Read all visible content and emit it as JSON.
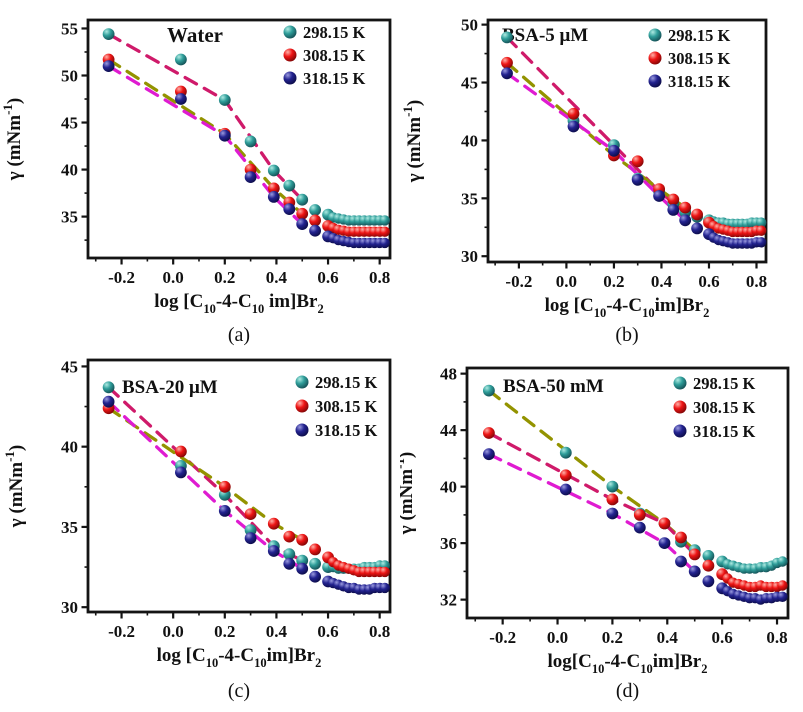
{
  "background": "#ffffff",
  "axis_color": "#141414",
  "palette": {
    "teal": {
      "light": "#aeeae2",
      "base": "#2f9e9a",
      "dark": "#134c52"
    },
    "red": {
      "light": "#ffb0a8",
      "base": "#ee1515",
      "dark": "#7c0505"
    },
    "navy": {
      "light": "#9a9adf",
      "base": "#232390",
      "dark": "#0b0b45"
    }
  },
  "chart_data": [
    {
      "type": "scatter",
      "panel": "a",
      "caption": "(a)",
      "title": "Water",
      "xlabel": "log [C10-4-C10 im]Br2",
      "xlabel_segments": [
        {
          "t": "log [C"
        },
        {
          "t": "10",
          "sub": true
        },
        {
          "t": "-4-C"
        },
        {
          "t": "10",
          "sub": true
        },
        {
          "t": " im]Br"
        },
        {
          "t": "2",
          "sub": true
        }
      ],
      "ylabel": "γ (mNm⁻¹)",
      "ylabel_segments": [
        {
          "t": "γ (mNm"
        },
        {
          "t": "-1",
          "sup": true
        },
        {
          "t": ")"
        }
      ],
      "xlim": [
        -0.33,
        0.84
      ],
      "ylim": [
        30.6,
        55.9
      ],
      "x_ticks": [
        -0.2,
        0.0,
        0.2,
        0.4,
        0.6,
        0.8
      ],
      "x_tick_labels": [
        "-0.2",
        "0.0",
        "0.2",
        "0.4",
        "0.6",
        "0.8"
      ],
      "x_minor_ticks": [
        -0.3,
        -0.1,
        0.1,
        0.3,
        0.5,
        0.7
      ],
      "y_ticks": [
        35,
        40,
        45,
        50,
        55
      ],
      "y_minor_ticks": [
        32.5,
        37.5,
        42.5,
        47.5,
        52.5
      ],
      "legend_position": "top-right",
      "grid": false,
      "x": [
        -0.25,
        0.03,
        0.2,
        0.3,
        0.39,
        0.45,
        0.5,
        0.55,
        0.6,
        0.62,
        0.64,
        0.66,
        0.68,
        0.7,
        0.72,
        0.74,
        0.76,
        0.78,
        0.8,
        0.82
      ],
      "series": [
        {
          "name": "298.15 K",
          "marker_color": "teal",
          "trend_color": "#cf1a6a",
          "y": [
            54.4,
            51.7,
            47.4,
            43.0,
            39.9,
            38.3,
            36.8,
            35.7,
            35.2,
            34.9,
            34.8,
            34.7,
            34.6,
            34.6,
            34.6,
            34.6,
            34.6,
            34.6,
            34.6,
            34.6
          ]
        },
        {
          "name": "308.15 K",
          "marker_color": "red",
          "trend_color": "#939300",
          "y": [
            51.7,
            48.3,
            43.8,
            40.0,
            38.0,
            36.5,
            35.3,
            34.6,
            34.0,
            33.8,
            33.6,
            33.5,
            33.4,
            33.4,
            33.4,
            33.4,
            33.4,
            33.4,
            33.4,
            33.4
          ]
        },
        {
          "name": "318.15 K",
          "marker_color": "navy",
          "trend_color": "#df1bd1",
          "y": [
            51.0,
            47.5,
            43.6,
            39.2,
            37.1,
            35.8,
            34.2,
            33.5,
            32.9,
            32.7,
            32.5,
            32.4,
            32.3,
            32.2,
            32.2,
            32.2,
            32.2,
            32.2,
            32.2,
            32.2
          ]
        }
      ]
    },
    {
      "type": "scatter",
      "panel": "b",
      "caption": "(b)",
      "title": "BSA-5 μM",
      "xlabel": "log [C10-4-C10im]Br2",
      "xlabel_segments": [
        {
          "t": "log [C"
        },
        {
          "t": "10",
          "sub": true
        },
        {
          "t": "-4-C"
        },
        {
          "t": "10",
          "sub": true
        },
        {
          "t": "im]Br"
        },
        {
          "t": "2",
          "sub": true
        }
      ],
      "ylabel": "γ (mNm⁻¹)",
      "ylabel_segments": [
        {
          "t": "γ (mNm"
        },
        {
          "t": "-1",
          "sup": true
        },
        {
          "t": ")"
        }
      ],
      "xlim": [
        -0.33,
        0.84
      ],
      "ylim": [
        29.5,
        50.4
      ],
      "x_ticks": [
        -0.2,
        0.0,
        0.2,
        0.4,
        0.6,
        0.8
      ],
      "x_tick_labels": [
        "-0.2",
        "0.0",
        "0.2",
        "0.4",
        "0.6",
        "0.8"
      ],
      "x_minor_ticks": [
        -0.3,
        -0.1,
        0.1,
        0.3,
        0.5,
        0.7
      ],
      "y_ticks": [
        30,
        35,
        40,
        45,
        50
      ],
      "y_minor_ticks": [
        32.5,
        37.5,
        42.5,
        47.5
      ],
      "legend_position": "top-right",
      "grid": false,
      "x": [
        -0.25,
        0.03,
        0.2,
        0.3,
        0.39,
        0.45,
        0.5,
        0.55,
        0.6,
        0.62,
        0.64,
        0.66,
        0.68,
        0.7,
        0.72,
        0.74,
        0.76,
        0.78,
        0.8,
        0.82
      ],
      "series": [
        {
          "name": "298.15 K",
          "marker_color": "teal",
          "trend_color": "#cf1a6a",
          "y": [
            48.9,
            41.7,
            39.6,
            36.7,
            35.6,
            34.5,
            33.8,
            33.4,
            33.1,
            33.0,
            32.9,
            32.9,
            32.8,
            32.8,
            32.8,
            32.8,
            32.8,
            32.9,
            32.9,
            32.9
          ]
        },
        {
          "name": "308.15 K",
          "marker_color": "red",
          "trend_color": "#939300",
          "y": [
            46.7,
            42.3,
            38.7,
            38.2,
            35.8,
            34.9,
            34.2,
            33.6,
            32.9,
            32.6,
            32.4,
            32.3,
            32.2,
            32.1,
            32.1,
            32.1,
            32.1,
            32.1,
            32.2,
            32.2
          ]
        },
        {
          "name": "318.15 K",
          "marker_color": "navy",
          "trend_color": "#df1bd1",
          "y": [
            45.8,
            41.2,
            39.1,
            36.6,
            35.2,
            34.0,
            33.1,
            32.4,
            31.9,
            31.6,
            31.4,
            31.3,
            31.2,
            31.1,
            31.1,
            31.1,
            31.1,
            31.1,
            31.2,
            31.2
          ]
        }
      ]
    },
    {
      "type": "scatter",
      "panel": "c",
      "caption": "(c)",
      "title": "BSA-20 μM",
      "xlabel": "log [C10-4-C10im]Br2",
      "xlabel_segments": [
        {
          "t": "log [C"
        },
        {
          "t": "10",
          "sub": true
        },
        {
          "t": "-4-C"
        },
        {
          "t": "10",
          "sub": true
        },
        {
          "t": "im]Br"
        },
        {
          "t": "2",
          "sub": true
        }
      ],
      "ylabel": "γ (mNm⁻¹)",
      "ylabel_segments": [
        {
          "t": "γ (mNm"
        },
        {
          "t": "-1",
          "sup": true
        },
        {
          "t": ")"
        }
      ],
      "xlim": [
        -0.33,
        0.84
      ],
      "ylim": [
        29.7,
        45.4
      ],
      "x_ticks": [
        -0.2,
        0.0,
        0.2,
        0.4,
        0.6,
        0.8
      ],
      "x_tick_labels": [
        "-0.2",
        "0.0",
        "0.2",
        "0.4",
        "0.6",
        "0.8"
      ],
      "x_minor_ticks": [
        -0.3,
        -0.1,
        0.1,
        0.3,
        0.5,
        0.7
      ],
      "y_ticks": [
        30,
        35,
        40,
        45
      ],
      "y_minor_ticks": [
        32.5,
        37.5,
        42.5
      ],
      "legend_position": "top-right",
      "grid": false,
      "x": [
        -0.25,
        0.03,
        0.2,
        0.3,
        0.39,
        0.45,
        0.5,
        0.55,
        0.6,
        0.62,
        0.64,
        0.66,
        0.68,
        0.7,
        0.72,
        0.74,
        0.76,
        0.78,
        0.8,
        0.82
      ],
      "series": [
        {
          "name": "298.15 K",
          "marker_color": "teal",
          "trend_color": "#cf1a6a",
          "y": [
            43.7,
            38.8,
            37.0,
            34.8,
            33.8,
            33.3,
            32.9,
            32.7,
            32.5,
            32.5,
            32.4,
            32.4,
            32.4,
            32.4,
            32.4,
            32.5,
            32.5,
            32.5,
            32.6,
            32.6
          ]
        },
        {
          "name": "308.15 K",
          "marker_color": "red",
          "trend_color": "#939300",
          "y": [
            42.4,
            39.7,
            37.5,
            35.8,
            35.2,
            34.4,
            34.2,
            33.6,
            33.1,
            32.8,
            32.6,
            32.5,
            32.4,
            32.3,
            32.2,
            32.2,
            32.2,
            32.2,
            32.2,
            32.2
          ]
        },
        {
          "name": "318.15 K",
          "marker_color": "navy",
          "trend_color": "#df1bd1",
          "y": [
            42.8,
            38.4,
            36.0,
            34.3,
            33.5,
            32.7,
            32.4,
            31.9,
            31.6,
            31.5,
            31.4,
            31.3,
            31.2,
            31.2,
            31.1,
            31.1,
            31.1,
            31.2,
            31.2,
            31.2
          ]
        }
      ]
    },
    {
      "type": "scatter",
      "panel": "d",
      "caption": "(d)",
      "title": "BSA-50 mM",
      "xlabel": "log[C10-4-C10im]Br2",
      "xlabel_segments": [
        {
          "t": "log[C"
        },
        {
          "t": "10",
          "sub": true
        },
        {
          "t": "-4-C"
        },
        {
          "t": "10",
          "sub": true
        },
        {
          "t": "im]Br"
        },
        {
          "t": "2",
          "sub": true
        }
      ],
      "ylabel": "γ (mNm⁻¹)",
      "ylabel_segments": [
        {
          "t": "γ (mNm"
        },
        {
          "t": "-1",
          "sup": true
        },
        {
          "t": ")"
        }
      ],
      "xlim": [
        -0.33,
        0.84
      ],
      "ylim": [
        30.7,
        48.4
      ],
      "x_ticks": [
        -0.2,
        0.0,
        0.2,
        0.4,
        0.6,
        0.8
      ],
      "x_tick_labels": [
        "-0.2",
        "0.0",
        "0.2",
        "0.4",
        "0.6",
        "0.8"
      ],
      "x_minor_ticks": [
        -0.3,
        -0.1,
        0.1,
        0.3,
        0.5,
        0.7
      ],
      "y_ticks": [
        32,
        36,
        40,
        44,
        48
      ],
      "y_minor_ticks": [
        34,
        38,
        42,
        46
      ],
      "legend_position": "top-right",
      "grid": false,
      "x": [
        -0.25,
        0.03,
        0.2,
        0.3,
        0.39,
        0.45,
        0.5,
        0.55,
        0.6,
        0.62,
        0.64,
        0.66,
        0.68,
        0.7,
        0.72,
        0.74,
        0.76,
        0.78,
        0.8,
        0.82
      ],
      "series": [
        {
          "name": "298.15 K",
          "marker_color": "teal",
          "trend_color": "#939300",
          "y": [
            46.8,
            42.4,
            40.0,
            38.1,
            37.4,
            36.1,
            35.5,
            35.1,
            34.7,
            34.5,
            34.4,
            34.3,
            34.2,
            34.2,
            34.2,
            34.3,
            34.3,
            34.4,
            34.6,
            34.7
          ]
        },
        {
          "name": "308.15 K",
          "marker_color": "red",
          "trend_color": "#cf1a6a",
          "y": [
            43.8,
            40.8,
            39.1,
            38.0,
            37.4,
            36.4,
            35.2,
            34.4,
            33.8,
            33.5,
            33.2,
            33.1,
            33.0,
            32.9,
            32.9,
            33.0,
            32.9,
            32.9,
            32.9,
            33.0
          ]
        },
        {
          "name": "318.15 K",
          "marker_color": "navy",
          "trend_color": "#df1bd1",
          "y": [
            42.3,
            39.8,
            38.1,
            37.1,
            36.0,
            34.7,
            34.0,
            33.3,
            32.8,
            32.6,
            32.4,
            32.3,
            32.2,
            32.1,
            32.1,
            32.0,
            32.1,
            32.1,
            32.2,
            32.2
          ]
        }
      ]
    }
  ]
}
